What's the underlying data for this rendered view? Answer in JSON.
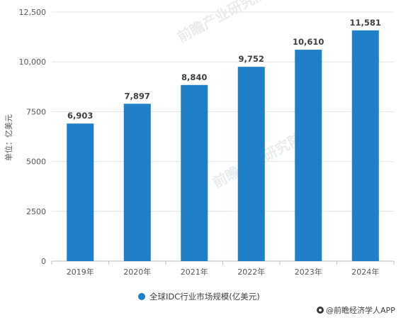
{
  "chart_data": {
    "type": "bar",
    "categories": [
      "2019年",
      "2020年",
      "2021年",
      "2022年",
      "2023年",
      "2024年"
    ],
    "series": [
      {
        "name": "全球IDC行业市场规模(亿美元)",
        "values": [
          6903,
          7897,
          8840,
          9752,
          10610,
          11581
        ]
      }
    ],
    "data_labels": [
      "6,903",
      "7,897",
      "8,840",
      "9,752",
      "10,610",
      "11,581"
    ],
    "ylabel": "单位：亿美元",
    "ylim": [
      0,
      12500
    ],
    "yticks": [
      0,
      2500,
      5000,
      7500,
      10000,
      12500
    ],
    "ytick_labels": [
      "0",
      "2500",
      "5000",
      "7500",
      "10,000",
      "12,500"
    ],
    "grid": true,
    "legend_position": "bottom",
    "bar_color": "#1f7fc8"
  },
  "watermark": {
    "brand": "前瞻产业研究院"
  },
  "footer": {
    "source": "@前瞻经济学人APP"
  }
}
